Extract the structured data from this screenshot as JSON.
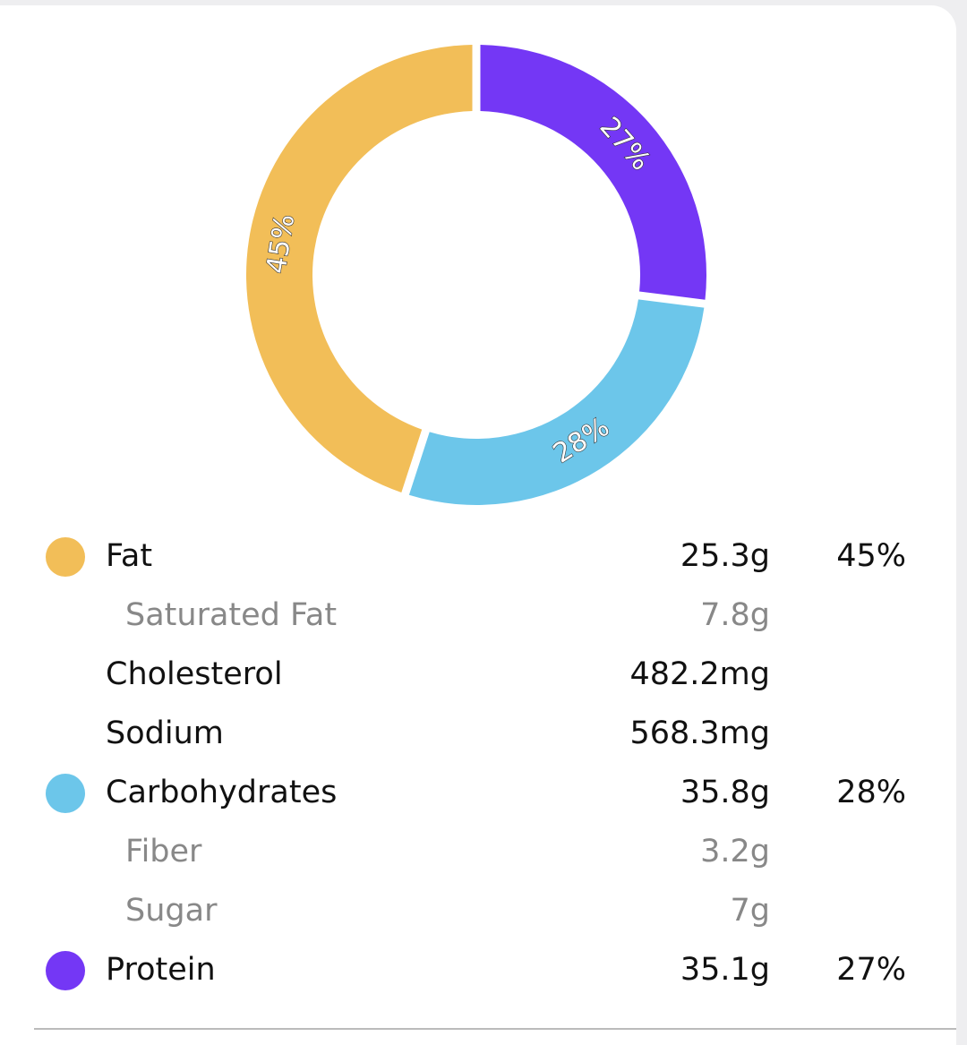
{
  "chart_data": {
    "type": "pie",
    "donut": true,
    "values": [
      45,
      28,
      27
    ],
    "value_labels": [
      "45%",
      "28%",
      "27%"
    ],
    "colors": [
      "#f2be58",
      "#6cc6ea",
      "#7437f5"
    ]
  },
  "table": {
    "rows": [
      [
        "Fat",
        "25.3g"
      ],
      [
        "Saturated Fat",
        "7.8g"
      ],
      [
        "Cholesterol",
        "482.2mg"
      ],
      [
        "Sodium",
        "568.3mg"
      ],
      [
        "Carbohydrates",
        "35.8g"
      ],
      [
        "Fiber",
        "3.2g"
      ],
      [
        "Sugar",
        "7g"
      ],
      [
        "Protein",
        "35.1g"
      ]
    ]
  }
}
